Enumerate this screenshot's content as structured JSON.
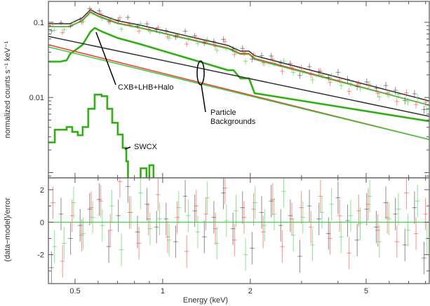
{
  "chart_data": {
    "type": "line",
    "title": "",
    "xlabel": "Energy (keV)",
    "ylabel_top": "normalized counts s⁻¹ keV⁻¹",
    "ylabel_bottom": "(data−model)/error",
    "xscale": "log",
    "xlim": [
      0.405,
      8.24
    ],
    "ylim_top": [
      0.00085,
      0.19
    ],
    "ylim_bottom": [
      -3.78,
      2.73
    ],
    "x_ticks": [
      {
        "v": 0.5,
        "label": "0.5"
      },
      {
        "v": 1,
        "label": "1"
      },
      {
        "v": 2,
        "label": "2"
      },
      {
        "v": 5,
        "label": "5"
      }
    ],
    "y_ticks_top": [
      {
        "v": 0.1,
        "label": "0.1"
      },
      {
        "v": 0.01,
        "label": "0.01"
      }
    ],
    "y_ticks_bottom": [
      {
        "v": 2,
        "label": "2"
      },
      {
        "v": 0,
        "label": "0"
      },
      {
        "v": -2,
        "label": "-2"
      }
    ],
    "colors": {
      "black": "#333333",
      "red": "#ff3333",
      "green": "#33cc33",
      "darkgreen": "#339922"
    },
    "models": [
      {
        "name": "total-black",
        "color": "#333333",
        "points": [
          [
            0.405,
            0.0957
          ],
          [
            0.48,
            0.0957
          ],
          [
            0.53,
            0.115
          ],
          [
            0.565,
            0.147
          ],
          [
            0.6,
            0.13
          ],
          [
            0.7,
            0.105
          ],
          [
            0.837,
            0.0918
          ],
          [
            1.675,
            0.0492
          ],
          [
            1.85,
            0.0414
          ],
          [
            1.98,
            0.0414
          ],
          [
            2.07,
            0.036
          ],
          [
            8.24,
            0.00898
          ]
        ]
      },
      {
        "name": "total-red",
        "color": "#ff3333",
        "points": [
          [
            0.405,
            0.0878
          ],
          [
            0.48,
            0.0878
          ],
          [
            0.53,
            0.107
          ],
          [
            0.565,
            0.138
          ],
          [
            0.6,
            0.122
          ],
          [
            0.7,
            0.098
          ],
          [
            0.837,
            0.085
          ],
          [
            1.675,
            0.0455
          ],
          [
            1.85,
            0.0385
          ],
          [
            1.98,
            0.0385
          ],
          [
            2.07,
            0.033
          ],
          [
            8.24,
            0.00788
          ]
        ]
      },
      {
        "name": "total-green",
        "color": "#33cc33",
        "points": [
          [
            0.405,
            0.0878
          ],
          [
            0.48,
            0.0878
          ],
          [
            0.53,
            0.105
          ],
          [
            0.565,
            0.135
          ],
          [
            0.6,
            0.12
          ],
          [
            0.7,
            0.096
          ],
          [
            0.837,
            0.084
          ],
          [
            1.675,
            0.0445
          ],
          [
            1.85,
            0.0375
          ],
          [
            1.98,
            0.0375
          ],
          [
            2.07,
            0.032
          ],
          [
            8.24,
            0.00788
          ]
        ]
      },
      {
        "name": "cxb-lhb-halo",
        "color": "#339922",
        "points": [
          [
            0.405,
            0.03
          ],
          [
            0.445,
            0.03
          ],
          [
            0.468,
            0.0313
          ],
          [
            0.481,
            0.038
          ],
          [
            0.53,
            0.05
          ],
          [
            0.565,
            0.075
          ],
          [
            0.584,
            0.0842
          ],
          [
            0.62,
            0.075
          ],
          [
            0.7,
            0.062
          ],
          [
            0.837,
            0.0513
          ],
          [
            1.675,
            0.0231
          ],
          [
            1.75,
            0.0231
          ],
          [
            1.85,
            0.0179
          ],
          [
            1.98,
            0.0179
          ],
          [
            2.07,
            0.0114
          ],
          [
            8.24,
            0.00482
          ]
        ]
      },
      {
        "name": "particle-black",
        "color": "#333333",
        "points": [
          [
            0.405,
            0.065
          ],
          [
            8.24,
            0.0056
          ]
        ]
      },
      {
        "name": "particle-red",
        "color": "#ff3333",
        "points": [
          [
            0.405,
            0.0502
          ],
          [
            8.24,
            0.00275
          ]
        ]
      },
      {
        "name": "particle-green",
        "color": "#33cc33",
        "points": [
          [
            0.405,
            0.0471
          ],
          [
            8.24,
            0.00275
          ]
        ]
      },
      {
        "name": "swcx",
        "color": "#339922",
        "step": true,
        "points": [
          [
            0.405,
            0.00252
          ],
          [
            0.426,
            0.00372
          ],
          [
            0.468,
            0.00404
          ],
          [
            0.489,
            0.00348
          ],
          [
            0.511,
            0.00314
          ],
          [
            0.531,
            0.00404
          ],
          [
            0.555,
            0.00707
          ],
          [
            0.584,
            0.0109
          ],
          [
            0.617,
            0.0104
          ],
          [
            0.645,
            0.00707
          ],
          [
            0.671,
            0.0046
          ],
          [
            0.701,
            0.00321
          ],
          [
            0.729,
            0.00213
          ],
          [
            0.75,
            0.00141
          ],
          [
            0.76,
            0.0008
          ],
          [
            0.84,
            0.0008
          ],
          [
            0.84,
            0.00114
          ],
          [
            0.88,
            0.00114
          ],
          [
            0.88,
            0.0008
          ],
          [
            0.9,
            0.0008
          ],
          [
            0.9,
            0.00125
          ],
          [
            0.93,
            0.00125
          ],
          [
            0.93,
            0.0008
          ]
        ]
      }
    ],
    "residual_grid": {
      "emin": 0.42,
      "emax": 8.0,
      "n": 40
    },
    "residuals": [
      {
        "name": "black",
        "color": "#333333",
        "values": [
          -2.8,
          0.5,
          -1.0,
          -0.2,
          0.8,
          1.4,
          -1.5,
          0.4,
          2.2,
          -0.6,
          1.1,
          -0.3,
          0.2,
          -1.2,
          1.6,
          0.7,
          -0.9,
          0.3,
          1.8,
          -0.4,
          0.9,
          -1.6,
          0.6,
          1.3,
          -0.2,
          0.4,
          -2.1,
          1.0,
          0.2,
          -0.7,
          1.5,
          0.1,
          -1.1,
          0.8,
          -0.3,
          1.2,
          0.5,
          -1.4,
          0.9,
          -2.2
        ]
      },
      {
        "name": "red",
        "color": "#ff3333",
        "values": [
          1.2,
          -2.4,
          0.4,
          -0.8,
          0.9,
          1.3,
          -0.5,
          2.5,
          0.6,
          -1.3,
          0.2,
          1.7,
          -0.9,
          0.3,
          -1.8,
          1.0,
          0.5,
          -0.4,
          2.1,
          -1.1,
          0.3,
          0.8,
          -0.6,
          1.4,
          -1.5,
          0.2,
          0.9,
          -0.3,
          1.6,
          -1.0,
          0.4,
          -1.9,
          0.7,
          1.1,
          -0.5,
          0.3,
          -1.2,
          1.8,
          -0.7,
          0.5
        ]
      },
      {
        "name": "green",
        "color": "#33cc33",
        "values": [
          -1.5,
          -1.3,
          1.2,
          -0.7,
          0.3,
          -0.2,
          1.0,
          -1.7,
          0.6,
          1.8,
          -0.4,
          0.2,
          -1.1,
          0.9,
          0.4,
          -0.6,
          1.5,
          -1.3,
          0.1,
          0.7,
          -2.0,
          1.2,
          -0.2,
          0.5,
          1.9,
          -0.8,
          0.3,
          -1.4,
          0.6,
          1.1,
          -0.9,
          0.4,
          -0.1,
          1.6,
          -1.2,
          0.2,
          0.8,
          -0.5,
          1.3,
          -1.0
        ]
      }
    ],
    "annotations": [
      {
        "id": "cxb",
        "lines": [
          "CXB+LHB+Halo"
        ]
      },
      {
        "id": "particle",
        "lines": [
          "Particle",
          "Backgrounds"
        ]
      },
      {
        "id": "swcx",
        "lines": [
          "SWCX"
        ]
      }
    ]
  }
}
